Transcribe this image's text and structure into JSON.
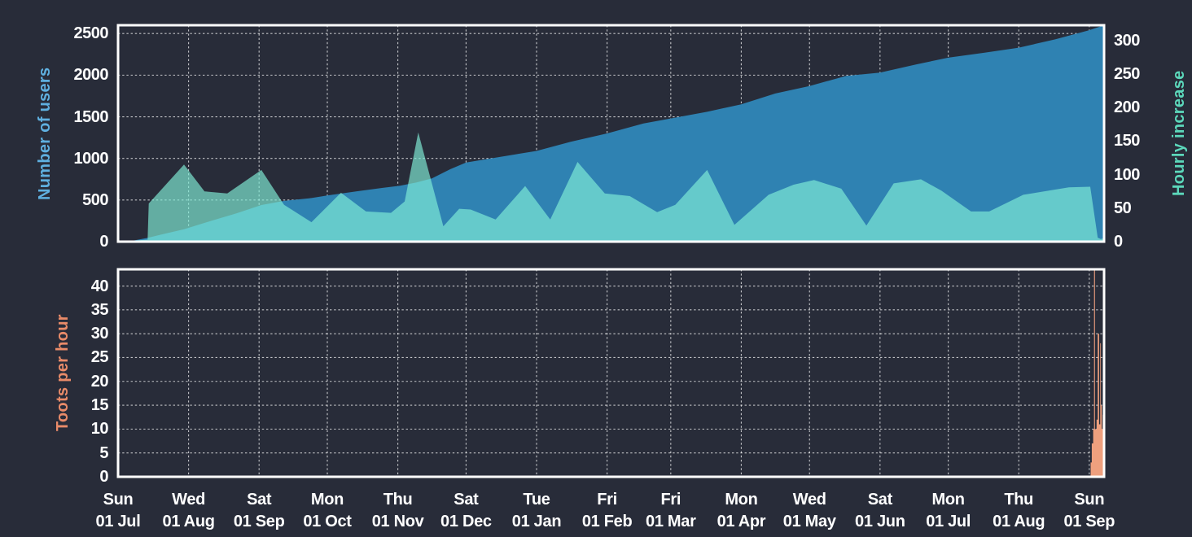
{
  "colors": {
    "background": "#282c39",
    "plot_border": "#ffffff",
    "grid": "rgba(255,255,255,0.72)",
    "tick_text": "#ffffff"
  },
  "chart_data": {
    "type": "area",
    "title": "",
    "legend": "none",
    "grid": "dashed",
    "x_axis": {
      "unit": "days (Sun 01 Jul through Sun 01 Sep of following year)",
      "range_days": [
        0,
        433.5
      ],
      "ticks": [
        {
          "day": 0,
          "weekday": "Sun",
          "date": "01 Jul"
        },
        {
          "day": 31,
          "weekday": "Wed",
          "date": "01 Aug"
        },
        {
          "day": 62,
          "weekday": "Sat",
          "date": "01 Sep"
        },
        {
          "day": 92,
          "weekday": "Mon",
          "date": "01 Oct"
        },
        {
          "day": 123,
          "weekday": "Thu",
          "date": "01 Nov"
        },
        {
          "day": 153,
          "weekday": "Sat",
          "date": "01 Dec"
        },
        {
          "day": 184,
          "weekday": "Tue",
          "date": "01 Jan"
        },
        {
          "day": 215,
          "weekday": "Fri",
          "date": "01 Feb"
        },
        {
          "day": 243,
          "weekday": "Fri",
          "date": "01 Mar"
        },
        {
          "day": 274,
          "weekday": "Mon",
          "date": "01 Apr"
        },
        {
          "day": 304,
          "weekday": "Wed",
          "date": "01 May"
        },
        {
          "day": 335,
          "weekday": "Sat",
          "date": "01 Jun"
        },
        {
          "day": 365,
          "weekday": "Mon",
          "date": "01 Jul"
        },
        {
          "day": 396,
          "weekday": "Thu",
          "date": "01 Aug"
        },
        {
          "day": 427,
          "weekday": "Sun",
          "date": "01 Sep"
        }
      ]
    },
    "panels": [
      {
        "name": "users-and-hourly-increase",
        "left_axis": {
          "label": "Number of users",
          "color": "#5fb0e0",
          "ticks": [
            0,
            500,
            1000,
            1500,
            2000,
            2500
          ],
          "max": 2600
        },
        "right_axis": {
          "label": "Hourly increase",
          "color": "#5cd8bb",
          "ticks": [
            0,
            50,
            100,
            150,
            200,
            250,
            300
          ],
          "max": 323
        },
        "series": [
          {
            "name": "number-of-users",
            "axis": "left",
            "color": "#2f82b2",
            "points": [
              [
                0,
                0
              ],
              [
                7,
                15
              ],
              [
                13,
                45
              ],
              [
                19,
                85
              ],
              [
                29,
                150
              ],
              [
                41,
                250
              ],
              [
                52,
                340
              ],
              [
                63,
                440
              ],
              [
                73,
                490
              ],
              [
                84,
                520
              ],
              [
                92,
                555
              ],
              [
                105,
                605
              ],
              [
                116,
                645
              ],
              [
                124,
                672
              ],
              [
                131,
                710
              ],
              [
                138,
                760
              ],
              [
                146,
                870
              ],
              [
                153,
                950
              ],
              [
                166,
                1010
              ],
              [
                184,
                1090
              ],
              [
                199,
                1200
              ],
              [
                215,
                1300
              ],
              [
                231,
                1420
              ],
              [
                243,
                1480
              ],
              [
                259,
                1560
              ],
              [
                274,
                1650
              ],
              [
                289,
                1780
              ],
              [
                304,
                1870
              ],
              [
                320,
                1990
              ],
              [
                335,
                2030
              ],
              [
                351,
                2130
              ],
              [
                365,
                2210
              ],
              [
                381,
                2270
              ],
              [
                396,
                2330
              ],
              [
                412,
                2430
              ],
              [
                427,
                2540
              ],
              [
                433.5,
                2600
              ]
            ]
          },
          {
            "name": "hourly-increase",
            "axis": "right",
            "color": "rgba(128,237,214,0.67)",
            "points": [
              [
                0,
                0
              ],
              [
                13,
                3
              ],
              [
                13.5,
                57
              ],
              [
                29,
                115
              ],
              [
                38,
                75
              ],
              [
                48,
                72
              ],
              [
                63,
                107
              ],
              [
                73,
                55
              ],
              [
                85,
                29
              ],
              [
                98,
                73
              ],
              [
                109,
                45
              ],
              [
                120,
                43
              ],
              [
                126,
                60
              ],
              [
                132,
                163
              ],
              [
                143,
                23
              ],
              [
                150,
                49
              ],
              [
                155,
                48
              ],
              [
                166,
                33
              ],
              [
                179,
                83
              ],
              [
                190,
                33
              ],
              [
                202,
                119
              ],
              [
                214,
                72
              ],
              [
                225,
                68
              ],
              [
                237,
                44
              ],
              [
                245,
                55
              ],
              [
                259,
                107
              ],
              [
                271,
                25
              ],
              [
                286,
                70
              ],
              [
                297,
                85
              ],
              [
                306,
                92
              ],
              [
                318,
                79
              ],
              [
                329,
                24
              ],
              [
                341,
                87
              ],
              [
                353,
                93
              ],
              [
                362,
                76
              ],
              [
                375,
                45
              ],
              [
                383,
                45
              ],
              [
                398,
                70
              ],
              [
                418,
                81
              ],
              [
                427.4,
                82
              ],
              [
                430.7,
                6
              ],
              [
                432,
                4
              ],
              [
                433.5,
                5
              ]
            ]
          }
        ]
      },
      {
        "name": "toots",
        "left_axis": {
          "label": "Toots per hour",
          "color": "#e98b69",
          "ticks": [
            0,
            5,
            10,
            15,
            20,
            25,
            30,
            35,
            40
          ],
          "max": 43.5
        },
        "series": [
          {
            "name": "toots-per-hour",
            "color": "#efa07e",
            "step": true,
            "points": [
              [
                427.3,
                0
              ],
              [
                427.6,
                3
              ],
              [
                428.1,
                7
              ],
              [
                428.7,
                10
              ],
              [
                429.1,
                44
              ],
              [
                429.5,
                10
              ],
              [
                430.2,
                12
              ],
              [
                430.7,
                30
              ],
              [
                431.3,
                11
              ],
              [
                431.8,
                28
              ],
              [
                432.1,
                15
              ],
              [
                432.5,
                10
              ],
              [
                432.9,
                13
              ],
              [
                433.2,
                11
              ],
              [
                433.5,
                11
              ]
            ]
          }
        ]
      }
    ]
  }
}
